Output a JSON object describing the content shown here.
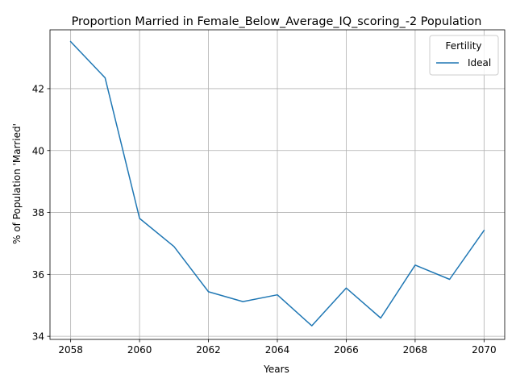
{
  "chart_data": {
    "type": "line",
    "title": "Proportion Married in Female_Below_Average_IQ_scoring_-2 Population",
    "xlabel": "Years",
    "ylabel": "% of Population 'Married'",
    "x": [
      2058,
      2059,
      2060,
      2061,
      2062,
      2063,
      2064,
      2065,
      2066,
      2067,
      2068,
      2069,
      2070
    ],
    "xticks": [
      2058,
      2060,
      2062,
      2064,
      2066,
      2068,
      2070
    ],
    "yticks": [
      34,
      36,
      38,
      40,
      42
    ],
    "xlim": [
      2057.4,
      2070.6
    ],
    "ylim": [
      33.9,
      43.9
    ],
    "grid": true,
    "legend": {
      "title": "Fertility",
      "placement": "top-right"
    },
    "series": [
      {
        "name": "Ideal",
        "color": "#1f77b4",
        "values": [
          43.52,
          42.35,
          37.81,
          36.9,
          35.44,
          35.12,
          35.34,
          34.34,
          35.56,
          34.59,
          36.3,
          35.84,
          37.42
        ]
      }
    ]
  }
}
